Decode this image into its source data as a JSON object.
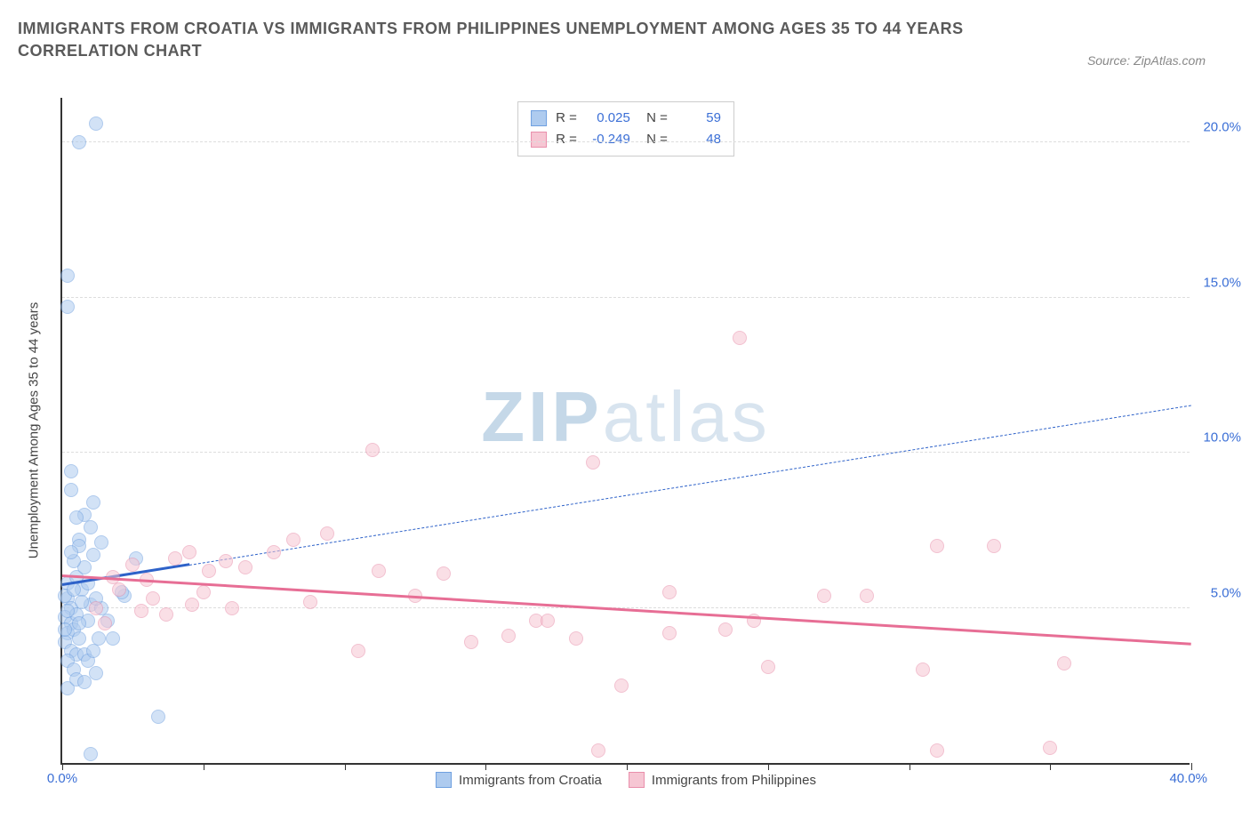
{
  "title": "IMMIGRANTS FROM CROATIA VS IMMIGRANTS FROM PHILIPPINES UNEMPLOYMENT AMONG AGES 35 TO 44 YEARS CORRELATION CHART",
  "source_label": "Source: ZipAtlas.com",
  "y_axis_title": "Unemployment Among Ages 35 to 44 years",
  "watermark_a": "ZIP",
  "watermark_b": "atlas",
  "chart": {
    "type": "scatter",
    "xlim": [
      0,
      40
    ],
    "ylim": [
      0,
      21.5
    ],
    "x_tick_positions": [
      0,
      5,
      10,
      15,
      20,
      25,
      30,
      35,
      40
    ],
    "x_tick_labels_shown": {
      "first": "0.0%",
      "last": "40.0%"
    },
    "y_ticks": [
      {
        "v": 5,
        "label": "5.0%"
      },
      {
        "v": 10,
        "label": "10.0%"
      },
      {
        "v": 15,
        "label": "15.0%"
      },
      {
        "v": 20,
        "label": "20.0%"
      }
    ],
    "background_color": "#ffffff",
    "grid_color": "#dddddd",
    "axis_color": "#333333",
    "tick_label_color": "#3b6fd6",
    "series": [
      {
        "name": "Immigrants from Croatia",
        "color_fill": "#aecbef",
        "color_stroke": "#6fa0e0",
        "marker_radius": 8,
        "fill_opacity": 0.55,
        "R": "0.025",
        "N": "59",
        "regression": {
          "x1": 0,
          "y1": 5.7,
          "x2": 40,
          "y2": 11.5,
          "solid_until_x": 4.5,
          "color": "#2e62c9",
          "width_solid": 3,
          "width_dash": 1.5
        },
        "points": [
          [
            0.2,
            5.8
          ],
          [
            0.2,
            5.3
          ],
          [
            0.3,
            5.0
          ],
          [
            0.1,
            4.7
          ],
          [
            0.3,
            4.5
          ],
          [
            0.2,
            4.2
          ],
          [
            0.5,
            4.8
          ],
          [
            0.4,
            4.3
          ],
          [
            0.1,
            3.9
          ],
          [
            0.3,
            3.6
          ],
          [
            0.5,
            3.5
          ],
          [
            0.2,
            3.3
          ],
          [
            0.4,
            3.0
          ],
          [
            0.8,
            3.5
          ],
          [
            0.9,
            3.3
          ],
          [
            1.1,
            3.6
          ],
          [
            1.3,
            4.0
          ],
          [
            0.9,
            4.6
          ],
          [
            1.0,
            5.1
          ],
          [
            0.7,
            5.6
          ],
          [
            0.5,
            6.0
          ],
          [
            0.8,
            6.3
          ],
          [
            1.1,
            6.7
          ],
          [
            0.6,
            7.2
          ],
          [
            1.0,
            7.6
          ],
          [
            0.8,
            8.0
          ],
          [
            1.1,
            8.4
          ],
          [
            0.3,
            9.4
          ],
          [
            0.2,
            2.4
          ],
          [
            2.2,
            5.4
          ],
          [
            2.1,
            5.5
          ],
          [
            1.4,
            5.0
          ],
          [
            1.6,
            4.6
          ],
          [
            1.8,
            4.0
          ],
          [
            1.2,
            2.9
          ],
          [
            2.6,
            6.6
          ],
          [
            3.4,
            1.5
          ],
          [
            1.0,
            0.3
          ],
          [
            0.2,
            14.7
          ],
          [
            0.2,
            15.7
          ],
          [
            0.6,
            20.0
          ],
          [
            1.2,
            20.6
          ],
          [
            0.7,
            5.2
          ],
          [
            0.4,
            6.5
          ],
          [
            0.6,
            7.0
          ],
          [
            0.9,
            5.8
          ],
          [
            1.2,
            5.3
          ],
          [
            0.6,
            4.0
          ],
          [
            0.5,
            2.7
          ],
          [
            0.8,
            2.6
          ],
          [
            0.3,
            6.8
          ],
          [
            0.5,
            7.9
          ],
          [
            0.1,
            5.4
          ],
          [
            0.4,
            5.6
          ],
          [
            0.1,
            4.3
          ],
          [
            0.2,
            4.9
          ],
          [
            0.6,
            4.5
          ],
          [
            0.3,
            8.8
          ],
          [
            1.4,
            7.1
          ]
        ]
      },
      {
        "name": "Immigrants from Philippines",
        "color_fill": "#f6c6d3",
        "color_stroke": "#e98fab",
        "marker_radius": 8,
        "fill_opacity": 0.55,
        "R": "-0.249",
        "N": "48",
        "regression": {
          "x1": 0,
          "y1": 6.0,
          "x2": 40,
          "y2": 3.8,
          "solid_until_x": 40,
          "color": "#e76e95",
          "width_solid": 3,
          "width_dash": 0
        },
        "points": [
          [
            2.0,
            5.6
          ],
          [
            2.8,
            4.9
          ],
          [
            3.2,
            5.3
          ],
          [
            2.5,
            6.4
          ],
          [
            3.7,
            4.8
          ],
          [
            4.6,
            5.1
          ],
          [
            4.0,
            6.6
          ],
          [
            4.5,
            6.8
          ],
          [
            5.2,
            6.2
          ],
          [
            5.8,
            6.5
          ],
          [
            5.0,
            5.5
          ],
          [
            6.5,
            6.3
          ],
          [
            7.5,
            6.8
          ],
          [
            8.2,
            7.2
          ],
          [
            9.4,
            7.4
          ],
          [
            10.5,
            3.6
          ],
          [
            11.0,
            10.1
          ],
          [
            11.2,
            6.2
          ],
          [
            12.5,
            5.4
          ],
          [
            13.5,
            6.1
          ],
          [
            14.5,
            3.9
          ],
          [
            15.8,
            4.1
          ],
          [
            16.8,
            4.6
          ],
          [
            17.2,
            4.6
          ],
          [
            18.2,
            4.0
          ],
          [
            18.8,
            9.7
          ],
          [
            19.0,
            0.4
          ],
          [
            19.8,
            2.5
          ],
          [
            21.5,
            5.5
          ],
          [
            21.5,
            4.2
          ],
          [
            23.5,
            4.3
          ],
          [
            24.5,
            4.6
          ],
          [
            24.0,
            13.7
          ],
          [
            25.0,
            3.1
          ],
          [
            27.0,
            5.4
          ],
          [
            28.5,
            5.4
          ],
          [
            31.0,
            7.0
          ],
          [
            30.5,
            3.0
          ],
          [
            31.0,
            0.4
          ],
          [
            33.0,
            7.0
          ],
          [
            35.0,
            0.5
          ],
          [
            35.5,
            3.2
          ],
          [
            1.2,
            5.0
          ],
          [
            1.5,
            4.5
          ],
          [
            1.8,
            6.0
          ],
          [
            3.0,
            5.9
          ],
          [
            6.0,
            5.0
          ],
          [
            8.8,
            5.2
          ]
        ]
      }
    ]
  },
  "legend_bottom": [
    {
      "swatch_fill": "#aecbef",
      "swatch_stroke": "#6fa0e0",
      "label": "Immigrants from Croatia"
    },
    {
      "swatch_fill": "#f6c6d3",
      "swatch_stroke": "#e98fab",
      "label": "Immigrants from Philippines"
    }
  ]
}
